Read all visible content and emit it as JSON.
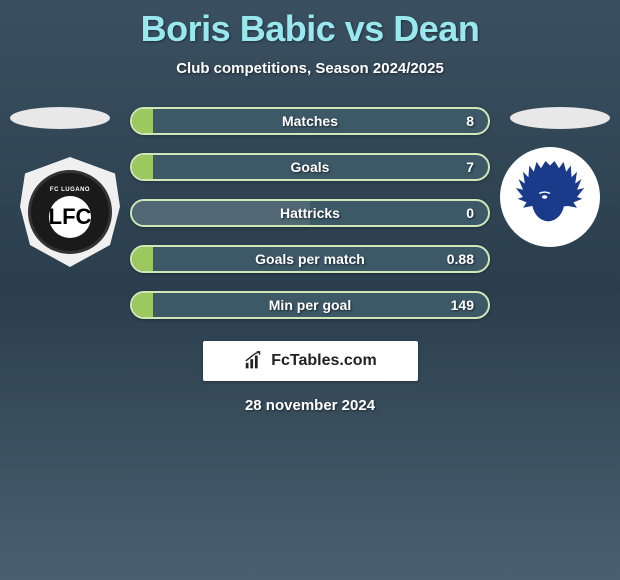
{
  "title": "Boris Babic vs Dean",
  "subtitle": "Club competitions, Season 2024/2025",
  "date": "28 november 2024",
  "brand": "FcTables.com",
  "colors": {
    "title": "#99e8f0",
    "text": "#ffffff",
    "bar_border": "#d0e8b8",
    "bar_bg": "#3d5968",
    "seg_green": "#9cc860",
    "seg_dark": "#506874",
    "box_bg": "#ffffff"
  },
  "bars": [
    {
      "label": "Matches",
      "value": "8",
      "left_pct": 6,
      "mid_pct": 0
    },
    {
      "label": "Goals",
      "value": "7",
      "left_pct": 6,
      "mid_pct": 0
    },
    {
      "label": "Hattricks",
      "value": "0",
      "left_pct": 0,
      "mid_pct": 50
    },
    {
      "label": "Goals per match",
      "value": "0.88",
      "left_pct": 6,
      "mid_pct": 0
    },
    {
      "label": "Min per goal",
      "value": "149",
      "left_pct": 6,
      "mid_pct": 0
    }
  ],
  "team_left": {
    "name": "FC Lugano",
    "short": "LFC",
    "emblem_text_top": "FC LUGANO"
  },
  "team_right": {
    "name": "KAA Gent",
    "emblem": "indian-head"
  }
}
